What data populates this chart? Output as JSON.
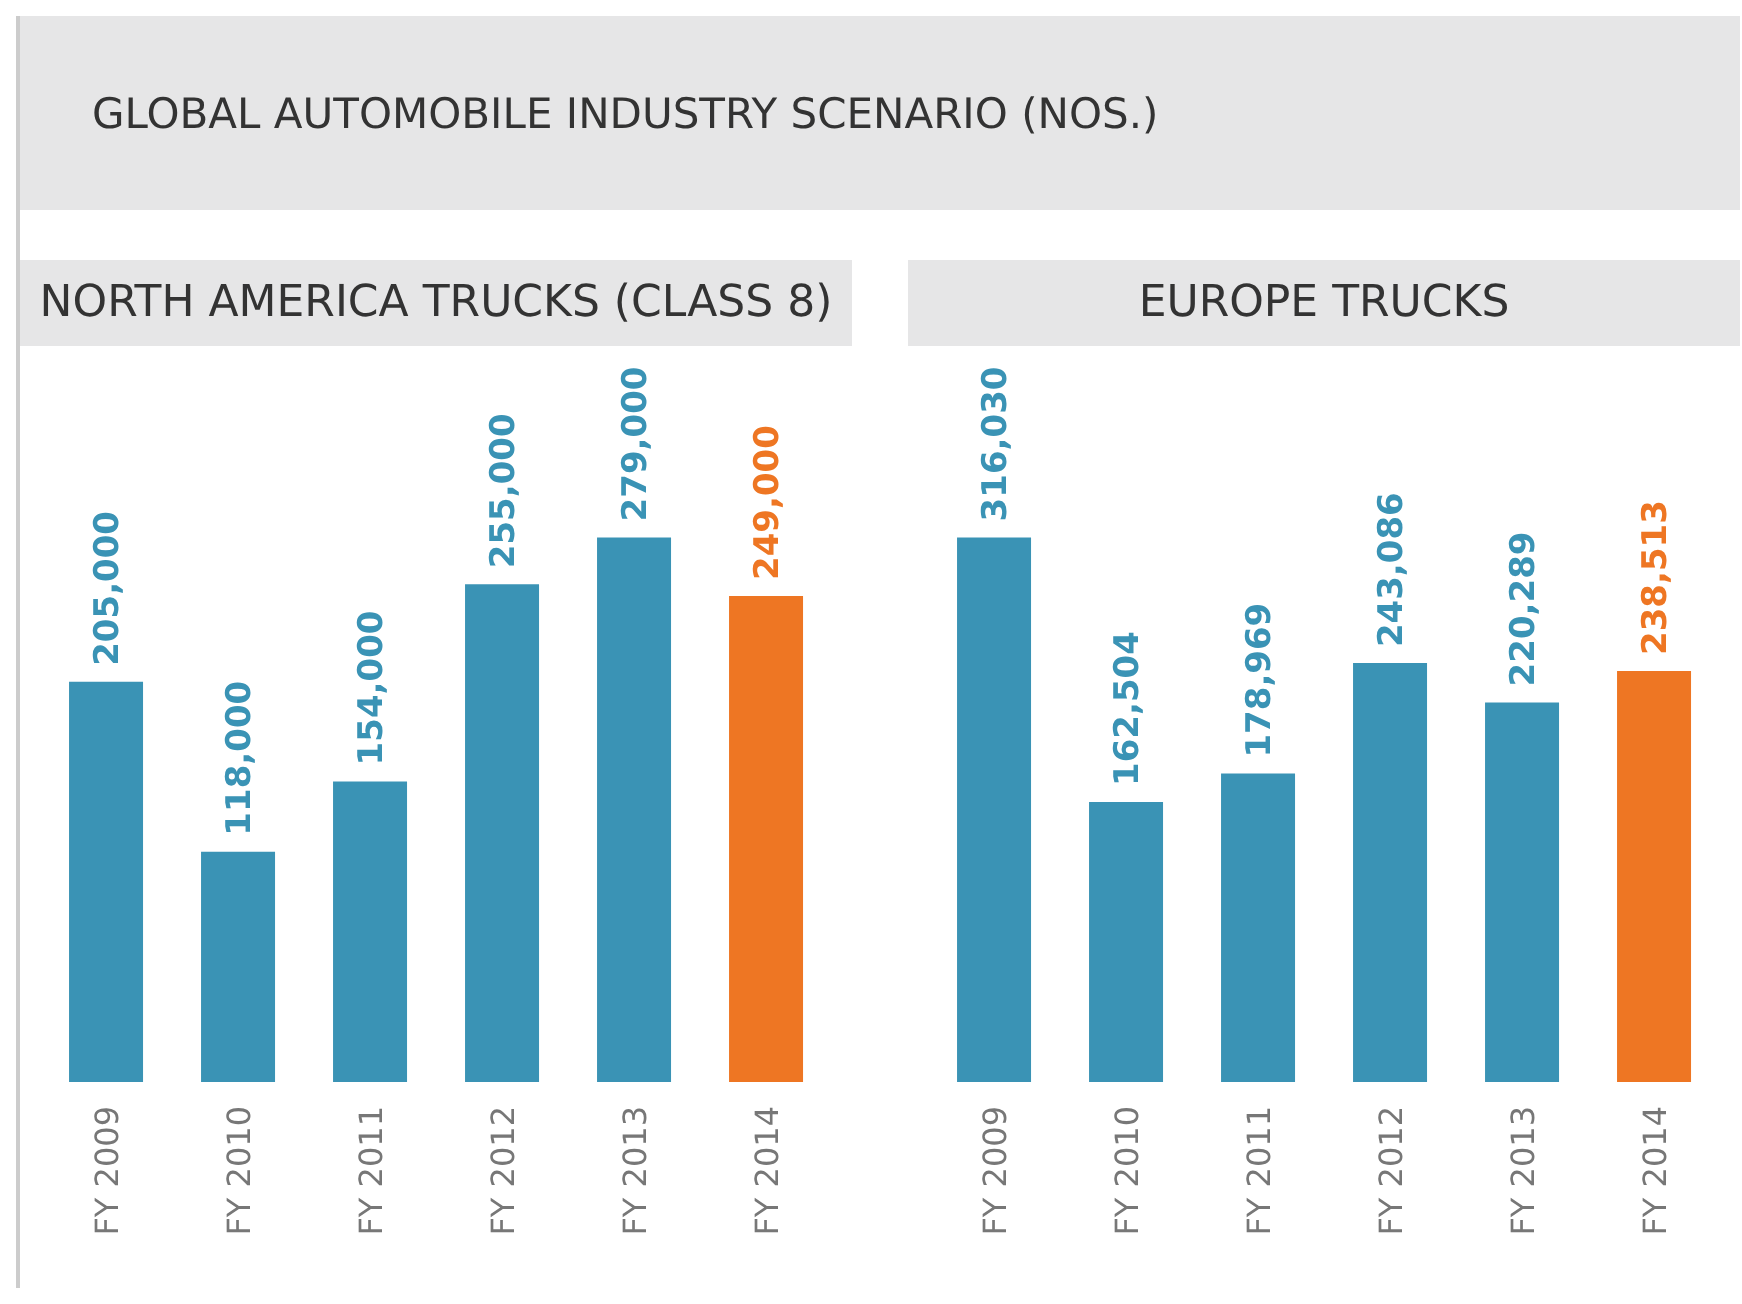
{
  "chart_data": [
    {
      "type": "bar",
      "title": "NORTH AMERICA TRUCKS (CLASS 8)",
      "categories": [
        "FY 2009",
        "FY 2010",
        "FY 2011",
        "FY 2012",
        "FY 2013",
        "FY 2014"
      ],
      "values": [
        205000,
        118000,
        154000,
        255000,
        279000,
        249000
      ],
      "colors": [
        "#3a93b5",
        "#3a93b5",
        "#3a93b5",
        "#3a93b5",
        "#3a93b5",
        "#ee7623"
      ],
      "value_labels": [
        "205,000",
        "118,000",
        "154,000",
        "255,000",
        "279,000",
        "249,000"
      ],
      "annotations": [
        "GLOBAL AUTOMOBILE INDUSTRY SCENARIO (NOS.)"
      ]
    },
    {
      "type": "bar",
      "title": "EUROPE TRUCKS",
      "categories": [
        "FY 2009",
        "FY 2010",
        "FY 2011",
        "FY 2012",
        "FY 2013",
        "FY 2014"
      ],
      "values": [
        316030,
        162504,
        178969,
        243086,
        220289,
        238513
      ],
      "colors": [
        "#3a93b5",
        "#3a93b5",
        "#3a93b5",
        "#3a93b5",
        "#3a93b5",
        "#ee7623"
      ],
      "value_labels": [
        "316,030",
        "162,504",
        "178,969",
        "243,086",
        "220,289",
        "238,513"
      ]
    }
  ]
}
